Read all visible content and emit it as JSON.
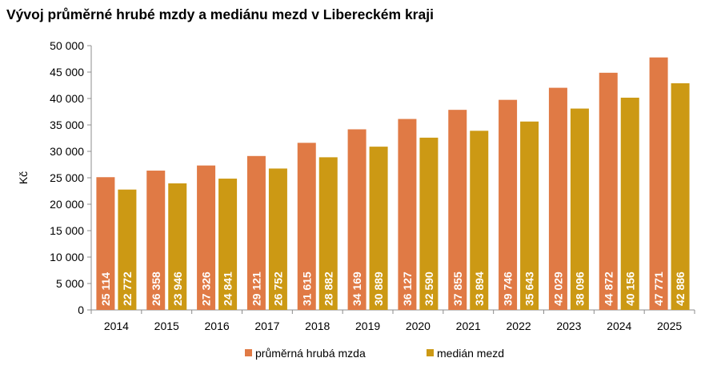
{
  "chart_data": {
    "type": "bar",
    "title": "Vývoj průměrné hrubé mzdy a mediánu mezd v Libereckém kraji",
    "xlabel": "",
    "ylabel": "Kč",
    "ylim": [
      0,
      50000
    ],
    "yticks": [
      0,
      5000,
      10000,
      15000,
      20000,
      25000,
      30000,
      35000,
      40000,
      45000,
      50000
    ],
    "ytick_labels": [
      "0",
      "5 000",
      "10 000",
      "15 000",
      "20 000",
      "25 000",
      "30 000",
      "35 000",
      "40 000",
      "45 000",
      "50 000"
    ],
    "categories": [
      "2014",
      "2015",
      "2016",
      "2017",
      "2018",
      "2019",
      "2020",
      "2021",
      "2022",
      "2023",
      "2024",
      "2025"
    ],
    "series": [
      {
        "name": "průměrná hrubá mzda",
        "color": "#E07A45",
        "values": [
          25114,
          26358,
          27326,
          29121,
          31615,
          34169,
          36127,
          37855,
          39746,
          42029,
          44872,
          47771
        ],
        "labels": [
          "25 114",
          "26 358",
          "27 326",
          "29 121",
          "31 615",
          "34 169",
          "36 127",
          "37 855",
          "39 746",
          "42 029",
          "44 872",
          "47 771"
        ]
      },
      {
        "name": "medián mezd",
        "color": "#CC9914",
        "values": [
          22772,
          23946,
          24841,
          26752,
          28882,
          30889,
          32590,
          33894,
          35643,
          38096,
          40156,
          42886
        ],
        "labels": [
          "22 772",
          "23 946",
          "24 841",
          "26 752",
          "28 882",
          "30 889",
          "32 590",
          "33 894",
          "35 643",
          "38 096",
          "40 156",
          "42 886"
        ]
      }
    ],
    "grid": false,
    "legend_position": "bottom"
  }
}
